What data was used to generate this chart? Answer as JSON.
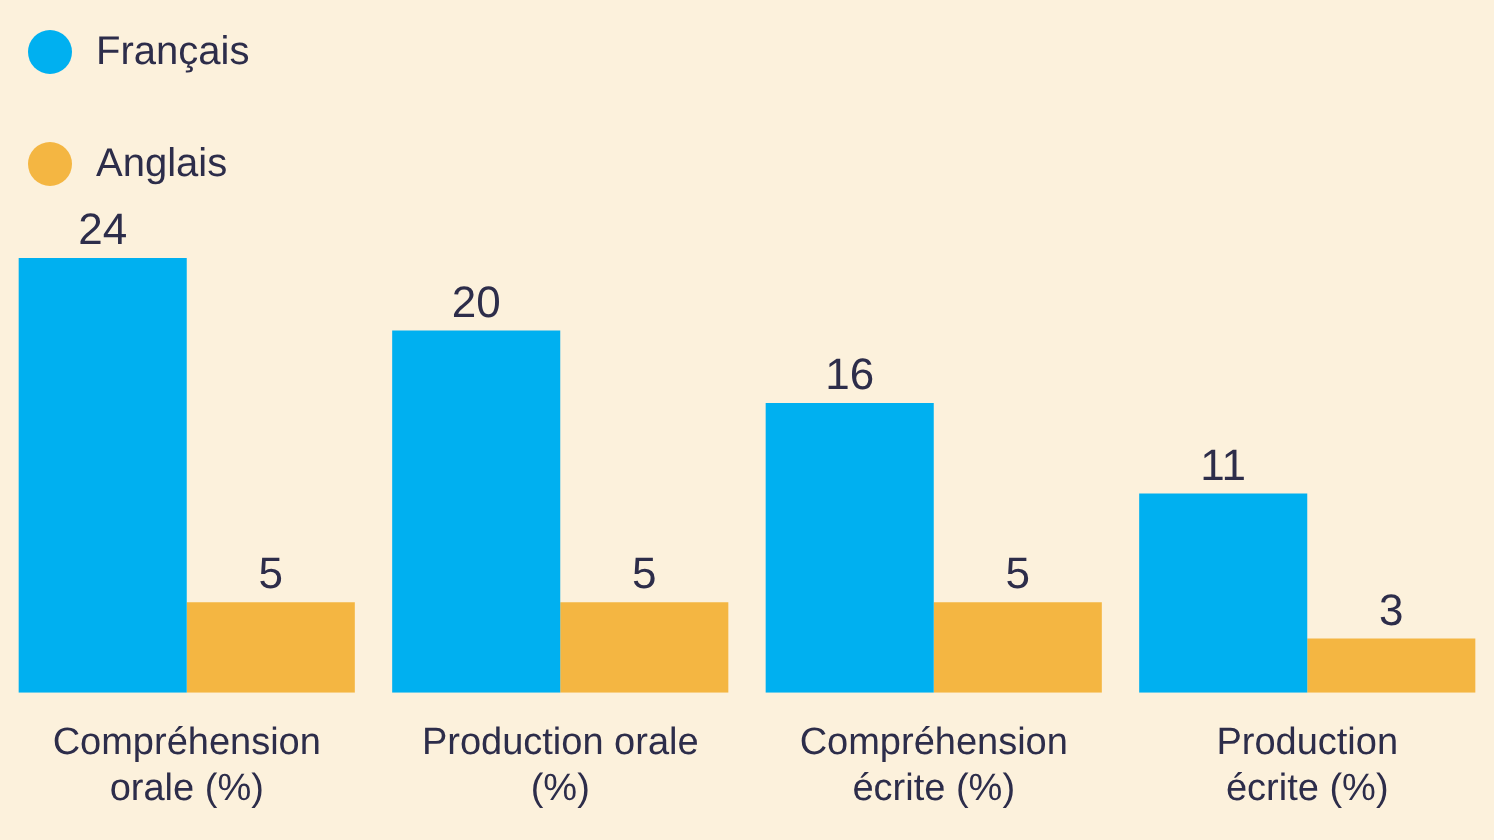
{
  "chart_data": {
    "type": "bar",
    "categories": [
      "Compréhension orale (%)",
      "Production orale (%)",
      "Compréhension écrite (%)",
      "Production écrite (%)"
    ],
    "series": [
      {
        "name": "Français",
        "color": "#00b0f0",
        "values": [
          24,
          20,
          16,
          11
        ]
      },
      {
        "name": "Anglais",
        "color": "#f4b642",
        "values": [
          5,
          5,
          5,
          3
        ]
      }
    ],
    "data_labels": true,
    "legend": "top left",
    "grid": false,
    "tick_labels": "x"
  }
}
